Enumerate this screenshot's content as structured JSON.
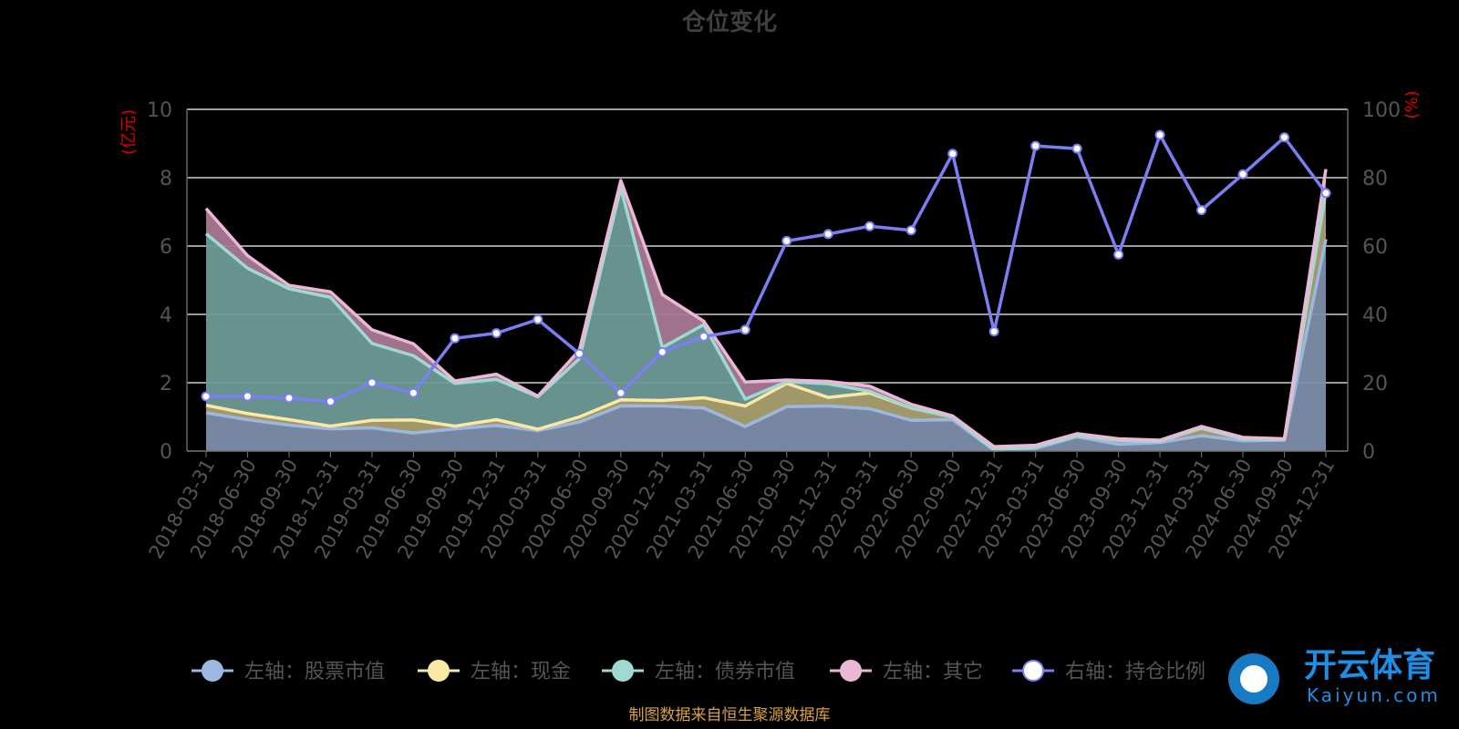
{
  "title": "仓位变化",
  "left_unit": "(亿元)",
  "right_unit": "(%)",
  "source": "制图数据来自恒生聚源数据库",
  "watermark": {
    "text": "开云体育",
    "sub": "Kaiyun.com"
  },
  "legend": [
    {
      "label": "左轴：股票市值",
      "color": "#9db7e0"
    },
    {
      "label": "左轴：现金",
      "color": "#fbe8a6"
    },
    {
      "label": "左轴：债券市值",
      "color": "#9fd9d2"
    },
    {
      "label": "左轴：其它",
      "color": "#eab8d6"
    },
    {
      "label": "右轴：持仓比例",
      "color": "#7b7ff2"
    }
  ],
  "chart_data": {
    "type": "area",
    "title": "仓位变化",
    "left_axis": {
      "unit": "(亿元)",
      "ylim": [
        0,
        10
      ],
      "ticks": [
        "0",
        "2",
        "4",
        "6",
        "8",
        "10"
      ]
    },
    "right_axis": {
      "unit": "(%)",
      "ylim": [
        0,
        100
      ],
      "ticks": [
        "0",
        "20",
        "40",
        "60",
        "80",
        "100"
      ]
    },
    "grid": true,
    "legend_position": "bottom",
    "categories": [
      "2018-03-31",
      "2018-06-30",
      "2018-09-30",
      "2018-12-31",
      "2019-03-31",
      "2019-06-30",
      "2019-09-30",
      "2019-12-31",
      "2020-03-31",
      "2020-06-30",
      "2020-09-30",
      "2020-12-31",
      "2021-03-31",
      "2021-06-30",
      "2021-09-30",
      "2021-12-31",
      "2022-03-31",
      "2022-06-30",
      "2022-09-30",
      "2022-12-31",
      "2023-03-31",
      "2023-06-30",
      "2023-09-30",
      "2023-12-31",
      "2024-03-31",
      "2024-06-30",
      "2024-09-30",
      "2024-12-31"
    ],
    "series": [
      {
        "name": "左轴：股票市值",
        "axis": "left",
        "color": "#9db7e0",
        "values": [
          1.12,
          0.92,
          0.76,
          0.65,
          0.68,
          0.53,
          0.65,
          0.75,
          0.6,
          0.85,
          1.32,
          1.32,
          1.26,
          0.72,
          1.3,
          1.32,
          1.24,
          0.9,
          0.92,
          0.02,
          0.08,
          0.42,
          0.2,
          0.25,
          0.45,
          0.3,
          0.32,
          6.2
        ]
      },
      {
        "name": "左轴：现金",
        "axis": "left",
        "color": "#fbe8a6",
        "values": [
          0.22,
          0.18,
          0.16,
          0.08,
          0.22,
          0.38,
          0.08,
          0.17,
          0.04,
          0.15,
          0.18,
          0.16,
          0.3,
          0.6,
          0.68,
          0.25,
          0.46,
          0.36,
          0.08,
          0.03,
          0.04,
          0.03,
          0.12,
          0.04,
          0.22,
          0.06,
          0.02,
          1.4
        ]
      },
      {
        "name": "左轴：债券市值",
        "axis": "left",
        "color": "#9fd9d2",
        "values": [
          5.02,
          4.25,
          3.83,
          3.77,
          2.25,
          1.88,
          1.25,
          1.18,
          0.95,
          1.7,
          6.2,
          1.55,
          2.14,
          0.2,
          0.05,
          0.4,
          0.05,
          0.0,
          0.0,
          0.0,
          0.0,
          0.0,
          0.0,
          0.0,
          0.0,
          0.0,
          0.0,
          0.0
        ]
      },
      {
        "name": "左轴：其它",
        "axis": "left",
        "color": "#eab8d6",
        "values": [
          0.74,
          0.37,
          0.1,
          0.16,
          0.4,
          0.35,
          0.07,
          0.15,
          0.02,
          0.25,
          0.22,
          1.55,
          0.1,
          0.5,
          0.05,
          0.07,
          0.15,
          0.11,
          0.03,
          0.08,
          0.05,
          0.06,
          0.04,
          0.03,
          0.05,
          0.04,
          0.02,
          0.65
        ]
      },
      {
        "name": "右轴：持仓比例",
        "axis": "right",
        "color": "#7b7ff2",
        "values": [
          16,
          16,
          15.5,
          14.5,
          20,
          17,
          33,
          34.5,
          38.5,
          28.5,
          17,
          29,
          33.5,
          35.5,
          61.5,
          63.5,
          65.8,
          64.6,
          87,
          35,
          89.3,
          88.5,
          57.5,
          92.5,
          70.5,
          81,
          91.8,
          75.5
        ]
      }
    ]
  }
}
